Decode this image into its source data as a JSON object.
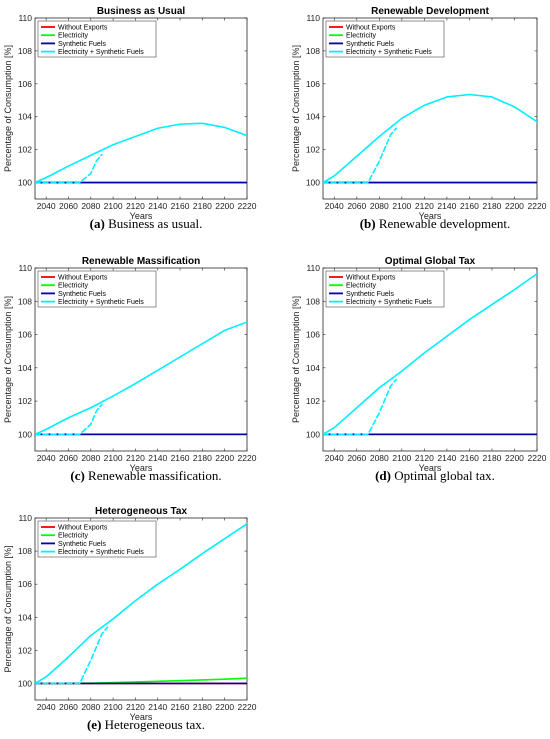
{
  "chart_data": [
    {
      "type": "line",
      "title": "Business as Usual",
      "xlabel": "Years",
      "ylabel": "Percentage of Consumption [%]",
      "xlim": [
        2030,
        2220
      ],
      "ylim": [
        99,
        110
      ],
      "xticks": [
        "2040",
        "2060",
        "2080",
        "2100",
        "2120",
        "2140",
        "2160",
        "2180",
        "2200",
        "2220"
      ],
      "yticks": [
        "100",
        "102",
        "104",
        "106",
        "108",
        "110"
      ],
      "legend": [
        "Without Exports",
        "Electricity",
        "Synthetic Fuels",
        "Electricity + Synthetic Fuels"
      ],
      "legend_position": "top-left",
      "caption_label": "(a)",
      "caption_text": "Business as usual.",
      "series": [
        {
          "name": "Without Exports",
          "color": "#ff0000",
          "style": "solid",
          "x": [
            2030,
            2220
          ],
          "y": [
            100,
            100
          ]
        },
        {
          "name": "Electricity",
          "color": "#00ff00",
          "style": "solid",
          "x": [
            2030,
            2220
          ],
          "y": [
            100,
            100
          ]
        },
        {
          "name": "Synthetic Fuels",
          "color": "#0000aa",
          "style": "solid",
          "x": [
            2030,
            2220
          ],
          "y": [
            100,
            100
          ]
        },
        {
          "name": "Electricity + Synthetic Fuels",
          "color": "#00eeff",
          "style": "solid",
          "x": [
            2030,
            2040,
            2060,
            2080,
            2100,
            2120,
            2140,
            2160,
            2180,
            2200,
            2220
          ],
          "y": [
            100,
            100.3,
            101,
            101.65,
            102.3,
            102.8,
            103.3,
            103.55,
            103.6,
            103.35,
            102.85
          ]
        },
        {
          "name": "Electricity + Synthetic Fuels",
          "color": "#00eeff",
          "style": "dashed",
          "x": [
            2030,
            2060,
            2070,
            2080,
            2085,
            2090
          ],
          "y": [
            100,
            100,
            100,
            100.55,
            101.3,
            101.7
          ]
        }
      ]
    },
    {
      "type": "line",
      "title": "Renewable Development",
      "xlabel": "Years",
      "ylabel": "Percentage of Consumption [%]",
      "xlim": [
        2030,
        2220
      ],
      "ylim": [
        99,
        110
      ],
      "xticks": [
        "2040",
        "2060",
        "2080",
        "2100",
        "2120",
        "2140",
        "2160",
        "2180",
        "2200",
        "2220"
      ],
      "yticks": [
        "100",
        "102",
        "104",
        "106",
        "108",
        "110"
      ],
      "legend": [
        "Without Exports",
        "Electricity",
        "Synthetic Fuels",
        "Electricity + Synthetic Fuels"
      ],
      "legend_position": "top-left",
      "caption_label": "(b)",
      "caption_text": "Renewable development.",
      "series": [
        {
          "name": "Without Exports",
          "color": "#ff0000",
          "style": "solid",
          "x": [
            2030,
            2220
          ],
          "y": [
            100,
            100
          ]
        },
        {
          "name": "Electricity",
          "color": "#00ff00",
          "style": "solid",
          "x": [
            2030,
            2220
          ],
          "y": [
            100,
            100
          ]
        },
        {
          "name": "Synthetic Fuels",
          "color": "#0000aa",
          "style": "solid",
          "x": [
            2030,
            2220
          ],
          "y": [
            100,
            100
          ]
        },
        {
          "name": "Electricity + Synthetic Fuels",
          "color": "#00eeff",
          "style": "solid",
          "x": [
            2030,
            2040,
            2060,
            2080,
            2100,
            2120,
            2140,
            2160,
            2180,
            2200,
            2220
          ],
          "y": [
            100,
            100.4,
            101.6,
            102.8,
            103.9,
            104.7,
            105.2,
            105.35,
            105.2,
            104.6,
            103.7
          ]
        },
        {
          "name": "Electricity + Synthetic Fuels",
          "color": "#00eeff",
          "style": "dashed",
          "x": [
            2030,
            2060,
            2070,
            2080,
            2090,
            2095
          ],
          "y": [
            100,
            100,
            100,
            101.3,
            102.9,
            103.3
          ]
        }
      ]
    },
    {
      "type": "line",
      "title": "Renewable Massification",
      "xlabel": "Years",
      "ylabel": "Percentage of Consumption [%]",
      "xlim": [
        2030,
        2220
      ],
      "ylim": [
        99,
        110
      ],
      "xticks": [
        "2040",
        "2060",
        "2080",
        "2100",
        "2120",
        "2140",
        "2160",
        "2180",
        "2200",
        "2220"
      ],
      "yticks": [
        "100",
        "102",
        "104",
        "106",
        "108",
        "110"
      ],
      "legend": [
        "Without Exports",
        "Electricity",
        "Synthetic Fuels",
        "Electricity + Synthetic Fuels"
      ],
      "legend_position": "top-left",
      "caption_label": "(c)",
      "caption_text": "Renewable massification.",
      "series": [
        {
          "name": "Without Exports",
          "color": "#ff0000",
          "style": "solid",
          "x": [
            2030,
            2220
          ],
          "y": [
            100,
            100
          ]
        },
        {
          "name": "Electricity",
          "color": "#00ff00",
          "style": "solid",
          "x": [
            2030,
            2220
          ],
          "y": [
            100,
            100
          ]
        },
        {
          "name": "Synthetic Fuels",
          "color": "#0000aa",
          "style": "solid",
          "x": [
            2030,
            2220
          ],
          "y": [
            100,
            100
          ]
        },
        {
          "name": "Electricity + Synthetic Fuels",
          "color": "#00eeff",
          "style": "solid",
          "x": [
            2030,
            2040,
            2060,
            2080,
            2100,
            2120,
            2140,
            2160,
            2180,
            2200,
            2220
          ],
          "y": [
            100,
            100.3,
            101,
            101.6,
            102.3,
            103.05,
            103.85,
            104.65,
            105.45,
            106.25,
            106.75
          ]
        },
        {
          "name": "Electricity + Synthetic Fuels",
          "color": "#00eeff",
          "style": "dashed",
          "x": [
            2030,
            2060,
            2070,
            2080,
            2085,
            2090
          ],
          "y": [
            100,
            100,
            100,
            100.6,
            101.4,
            101.8
          ]
        }
      ]
    },
    {
      "type": "line",
      "title": "Optimal Global Tax",
      "xlabel": "Years",
      "ylabel": "Percentage of Consumption [%]",
      "xlim": [
        2030,
        2220
      ],
      "ylim": [
        99,
        110
      ],
      "xticks": [
        "2040",
        "2060",
        "2080",
        "2100",
        "2120",
        "2140",
        "2160",
        "2180",
        "2200",
        "2220"
      ],
      "yticks": [
        "100",
        "102",
        "104",
        "106",
        "108",
        "110"
      ],
      "legend": [
        "Without Exports",
        "Electricity",
        "Synthetic Fuels",
        "Electricity + Synthetic Fuels"
      ],
      "legend_position": "top-left",
      "caption_label": "(d)",
      "caption_text": "Optimal global tax.",
      "series": [
        {
          "name": "Without Exports",
          "color": "#ff0000",
          "style": "solid",
          "x": [
            2030,
            2220
          ],
          "y": [
            100,
            100
          ]
        },
        {
          "name": "Electricity",
          "color": "#00ff00",
          "style": "solid",
          "x": [
            2030,
            2220
          ],
          "y": [
            100,
            100
          ]
        },
        {
          "name": "Synthetic Fuels",
          "color": "#0000aa",
          "style": "solid",
          "x": [
            2030,
            2220
          ],
          "y": [
            100,
            100
          ]
        },
        {
          "name": "Electricity + Synthetic Fuels",
          "color": "#00eeff",
          "style": "solid",
          "x": [
            2030,
            2040,
            2060,
            2080,
            2100,
            2120,
            2140,
            2160,
            2180,
            2200,
            2220
          ],
          "y": [
            100,
            100.4,
            101.6,
            102.8,
            103.8,
            104.9,
            105.9,
            106.9,
            107.8,
            108.7,
            109.65
          ]
        },
        {
          "name": "Electricity + Synthetic Fuels",
          "color": "#00eeff",
          "style": "dashed",
          "x": [
            2030,
            2060,
            2070,
            2080,
            2090,
            2095
          ],
          "y": [
            100,
            100,
            100,
            101.3,
            102.9,
            103.3
          ]
        }
      ]
    },
    {
      "type": "line",
      "title": "Heterogeneous Tax",
      "xlabel": "Years",
      "ylabel": "Percentage of Consumption [%]",
      "xlim": [
        2030,
        2220
      ],
      "ylim": [
        99,
        110
      ],
      "xticks": [
        "2040",
        "2060",
        "2080",
        "2100",
        "2120",
        "2140",
        "2160",
        "2180",
        "2200",
        "2220"
      ],
      "yticks": [
        "100",
        "102",
        "104",
        "106",
        "108",
        "110"
      ],
      "legend": [
        "Without Exports",
        "Electricity",
        "Synthetic Fuels",
        "Electricity + Synthetic Fuels"
      ],
      "legend_position": "top-left",
      "caption_label": "(e)",
      "caption_text": "Heterogeneous tax.",
      "series": [
        {
          "name": "Without Exports",
          "color": "#ff0000",
          "style": "solid",
          "x": [
            2030,
            2220
          ],
          "y": [
            100,
            100
          ]
        },
        {
          "name": "Electricity",
          "color": "#00ff00",
          "style": "solid",
          "x": [
            2030,
            2080,
            2120,
            2160,
            2200,
            2220
          ],
          "y": [
            100,
            100.02,
            100.09,
            100.17,
            100.26,
            100.32
          ]
        },
        {
          "name": "Synthetic Fuels",
          "color": "#0000aa",
          "style": "solid",
          "x": [
            2030,
            2220
          ],
          "y": [
            100,
            100
          ]
        },
        {
          "name": "Electricity + Synthetic Fuels",
          "color": "#00eeff",
          "style": "solid",
          "x": [
            2030,
            2040,
            2060,
            2080,
            2100,
            2120,
            2140,
            2160,
            2180,
            2200,
            2220
          ],
          "y": [
            100,
            100.4,
            101.6,
            102.9,
            103.9,
            105.0,
            106.0,
            106.9,
            107.85,
            108.75,
            109.65
          ]
        },
        {
          "name": "Electricity + Synthetic Fuels",
          "color": "#00eeff",
          "style": "dashed",
          "x": [
            2030,
            2060,
            2070,
            2080,
            2090,
            2095
          ],
          "y": [
            100,
            100,
            100,
            101.4,
            103.0,
            103.4
          ]
        }
      ]
    }
  ]
}
